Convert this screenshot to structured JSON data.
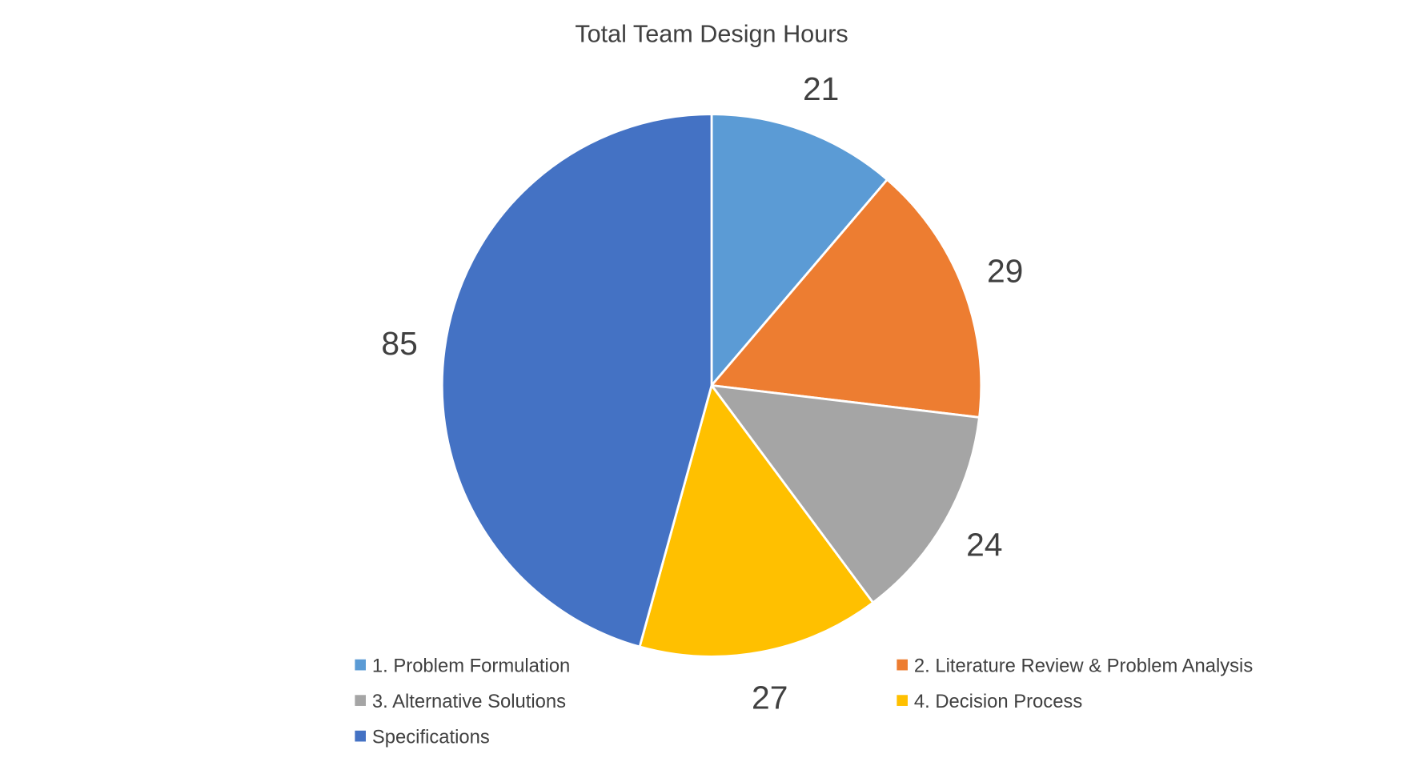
{
  "chart_data": {
    "type": "pie",
    "title": "Total Team Design Hours",
    "categories": [
      "1. Problem Formulation",
      "2. Literature Review & Problem Analysis",
      "3. Alternative Solutions",
      "4. Decision Process",
      "Specifications"
    ],
    "values": [
      21,
      29,
      24,
      27,
      85
    ],
    "colors": [
      "#5B9BD5",
      "#ED7D31",
      "#A5A5A5",
      "#FFC000",
      "#4472C4"
    ],
    "data_labels": [
      "21",
      "29",
      "24",
      "27",
      "85"
    ],
    "legend_placement": "bottom",
    "start_angle": "top, clockwise"
  }
}
